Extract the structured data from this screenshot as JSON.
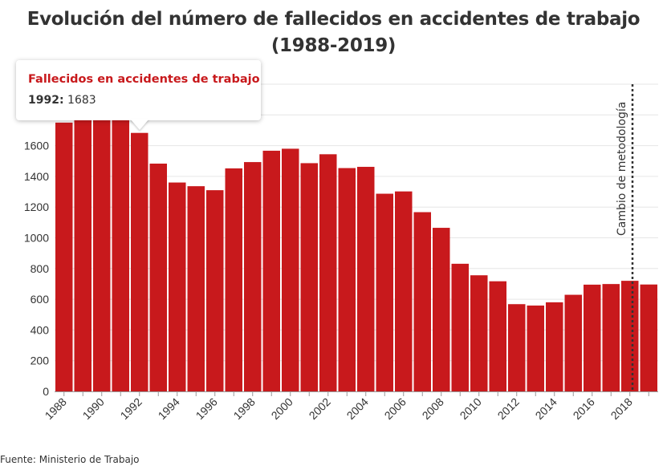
{
  "title_line1": "Evolución del número de fallecidos en accidentes de trabajo",
  "title_line2": "(1988-2019)",
  "source": "Fuente: Ministerio de Trabajo",
  "colors": {
    "bar": "#c8191c",
    "grid": "#e6e6e6",
    "axis": "#999999",
    "text": "#333333"
  },
  "tooltip": {
    "series_name": "Fallecidos en accidentes de trabajo",
    "year_label": "1992:",
    "value_text": "1683"
  },
  "annotation": {
    "text": "Cambio de metodología",
    "between": [
      2017,
      2018
    ]
  },
  "chart_data": {
    "type": "bar",
    "title": "Evolución del número de fallecidos en accidentes de trabajo (1988-2019)",
    "categories": [
      1988,
      1989,
      1990,
      1991,
      1992,
      1993,
      1994,
      1995,
      1996,
      1997,
      1998,
      1999,
      2000,
      2001,
      2002,
      2003,
      2004,
      2005,
      2006,
      2007,
      2008,
      2009,
      2010,
      2011,
      2012,
      2013,
      2014,
      2015,
      2016,
      2017,
      2018,
      2019
    ],
    "series": [
      {
        "name": "Fallecidos en accidentes de trabajo",
        "values": [
          1750,
          1790,
          1780,
          1790,
          1683,
          1483,
          1360,
          1336,
          1310,
          1452,
          1493,
          1567,
          1580,
          1486,
          1544,
          1454,
          1462,
          1287,
          1302,
          1167,
          1065,
          831,
          756,
          717,
          568,
          559,
          580,
          629,
          695,
          699,
          720,
          696
        ]
      }
    ],
    "x_tick_labels": [
      "1988",
      "1990",
      "1992",
      "1994",
      "1996",
      "1998",
      "2000",
      "2002",
      "2004",
      "2006",
      "2008",
      "2010",
      "2012",
      "2014",
      "2016",
      "2018"
    ],
    "y_ticks": [
      0,
      200,
      400,
      600,
      800,
      1000,
      1200,
      1400,
      1600
    ],
    "ylim": [
      0,
      2000
    ],
    "xlabel": "",
    "ylabel": "",
    "grid": true,
    "legend": "none"
  }
}
